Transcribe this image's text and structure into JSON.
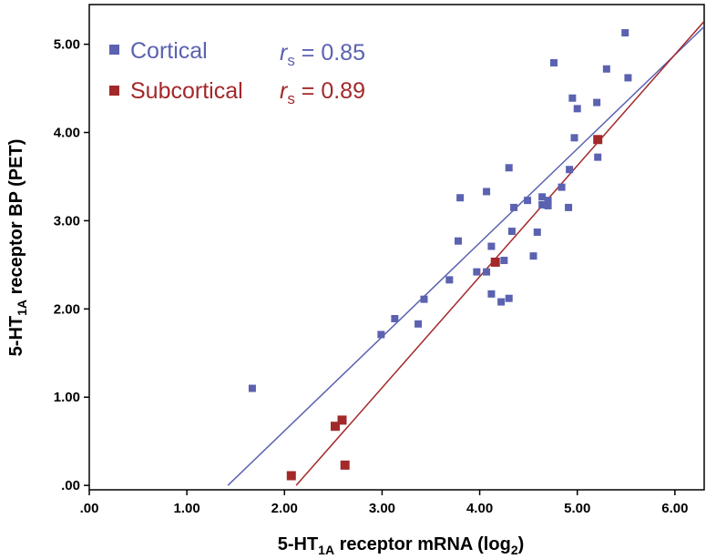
{
  "chart_data": {
    "type": "scatter",
    "xlabel": {
      "main": "5-HT",
      "sub": "1A",
      "rest": " receptor mRNA (log",
      "sub2": "2",
      "close": ")"
    },
    "ylabel": {
      "main": "5-HT",
      "sub": "1A",
      "rest": " receptor BP (PET)"
    },
    "xlim": [
      0,
      6.3
    ],
    "ylim": [
      -0.05,
      5.45
    ],
    "xticks": [
      0,
      1,
      2,
      3,
      4,
      5,
      6
    ],
    "xtick_labels": [
      ".00",
      "1.00",
      "2.00",
      "3.00",
      "4.00",
      "5.00",
      "6.00"
    ],
    "yticks": [
      0,
      1,
      2,
      3,
      4,
      5
    ],
    "ytick_labels": [
      ".00",
      "1.00",
      "2.00",
      "3.00",
      "4.00",
      "5.00"
    ],
    "grid": false,
    "legend_position": "top-left",
    "series": [
      {
        "name": "Cortical",
        "color": "#5b62b0",
        "stat_symbol": "r",
        "stat_sub": "s",
        "stat_value": " = 0.85",
        "fit": {
          "x": [
            1.42,
            6.3
          ],
          "y": [
            0.0,
            5.2
          ]
        },
        "points": [
          [
            1.67,
            1.1
          ],
          [
            2.99,
            1.71
          ],
          [
            3.13,
            1.89
          ],
          [
            3.37,
            1.83
          ],
          [
            3.43,
            2.11
          ],
          [
            3.69,
            2.33
          ],
          [
            3.78,
            2.77
          ],
          [
            3.8,
            3.26
          ],
          [
            3.97,
            2.42
          ],
          [
            4.07,
            2.42
          ],
          [
            4.07,
            3.33
          ],
          [
            4.12,
            2.71
          ],
          [
            4.12,
            2.17
          ],
          [
            4.22,
            2.08
          ],
          [
            4.25,
            2.55
          ],
          [
            4.3,
            2.12
          ],
          [
            4.3,
            3.6
          ],
          [
            4.33,
            2.88
          ],
          [
            4.35,
            3.15
          ],
          [
            4.49,
            3.23
          ],
          [
            4.55,
            2.6
          ],
          [
            4.59,
            2.87
          ],
          [
            4.64,
            3.27
          ],
          [
            4.64,
            3.18
          ],
          [
            4.7,
            3.17
          ],
          [
            4.7,
            3.23
          ],
          [
            4.76,
            4.79
          ],
          [
            4.84,
            3.38
          ],
          [
            4.91,
            3.15
          ],
          [
            4.92,
            3.58
          ],
          [
            4.95,
            4.39
          ],
          [
            4.97,
            3.94
          ],
          [
            5.0,
            4.27
          ],
          [
            5.2,
            4.34
          ],
          [
            5.21,
            3.72
          ],
          [
            5.3,
            4.72
          ],
          [
            5.49,
            5.13
          ],
          [
            5.52,
            4.62
          ]
        ]
      },
      {
        "name": "Subcortical",
        "color": "#a3282a",
        "stat_symbol": "r",
        "stat_sub": "s",
        "stat_value": " = 0.89",
        "fit": {
          "x": [
            2.12,
            6.3
          ],
          "y": [
            0.0,
            5.26
          ]
        },
        "points": [
          [
            2.07,
            0.11
          ],
          [
            2.52,
            0.67
          ],
          [
            2.59,
            0.74
          ],
          [
            2.62,
            0.23
          ],
          [
            4.16,
            2.53
          ],
          [
            5.21,
            3.92
          ]
        ]
      }
    ]
  }
}
